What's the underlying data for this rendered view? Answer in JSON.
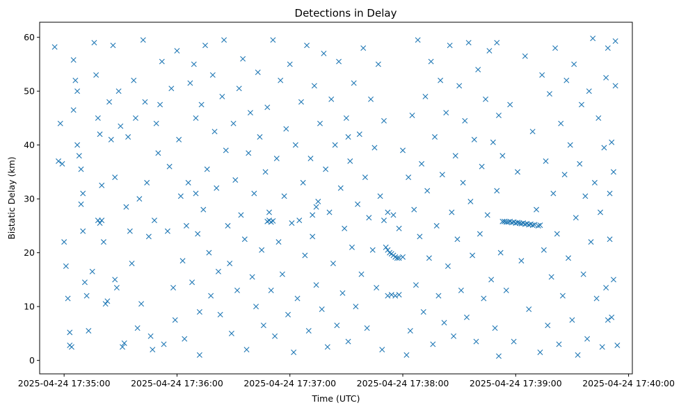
{
  "chart_data": {
    "type": "scatter",
    "title": "Detections in Delay",
    "xlabel": "Time (UTC)",
    "ylabel": "Bistatic Delay (km)",
    "marker": "x",
    "color": "#1f77b4",
    "grid": false,
    "legend": "none",
    "x_axis_type": "time",
    "xlim": [
      "2025-04-24 17:34:47",
      "2025-04-24 17:40:02"
    ],
    "ylim": [
      -2.5,
      62.8
    ],
    "x_ticks": [
      "2025-04-24 17:35:00",
      "2025-04-24 17:36:00",
      "2025-04-24 17:37:00",
      "2025-04-24 17:38:00",
      "2025-04-24 17:39:00",
      "2025-04-24 17:40:00"
    ],
    "y_ticks": [
      "0",
      "10",
      "20",
      "30",
      "40",
      "50",
      "60"
    ],
    "points": [
      [
        "17:34:55",
        58.2
      ],
      [
        "17:34:57",
        37.0
      ],
      [
        "17:34:58",
        44.0
      ],
      [
        "17:34:59",
        36.5
      ],
      [
        "17:35:00",
        22.0
      ],
      [
        "17:35:01",
        17.5
      ],
      [
        "17:35:02",
        11.5
      ],
      [
        "17:35:03",
        5.2
      ],
      [
        "17:35:03",
        2.8
      ],
      [
        "17:35:04",
        2.5
      ],
      [
        "17:35:05",
        55.8
      ],
      [
        "17:35:05",
        46.5
      ],
      [
        "17:35:06",
        52.0
      ],
      [
        "17:35:07",
        50.0
      ],
      [
        "17:35:07",
        40.0
      ],
      [
        "17:35:08",
        38.0
      ],
      [
        "17:35:09",
        35.5
      ],
      [
        "17:35:09",
        29.0
      ],
      [
        "17:35:10",
        31.0
      ],
      [
        "17:35:10",
        24.0
      ],
      [
        "17:35:11",
        14.5
      ],
      [
        "17:35:12",
        12.0
      ],
      [
        "17:35:13",
        5.5
      ],
      [
        "17:35:15",
        16.5
      ],
      [
        "17:35:16",
        59.0
      ],
      [
        "17:35:17",
        53.0
      ],
      [
        "17:35:18",
        45.0
      ],
      [
        "17:35:19",
        42.0
      ],
      [
        "17:35:20",
        32.5
      ],
      [
        "17:35:21",
        22.0
      ],
      [
        "17:35:22",
        10.5
      ],
      [
        "17:35:23",
        11.0
      ],
      [
        "17:35:24",
        48.0
      ],
      [
        "17:35:25",
        41.0
      ],
      [
        "17:35:26",
        58.5
      ],
      [
        "17:35:27",
        34.0
      ],
      [
        "17:35:27",
        15.0
      ],
      [
        "17:35:28",
        13.5
      ],
      [
        "17:35:29",
        50.0
      ],
      [
        "17:35:30",
        43.5
      ],
      [
        "17:35:31",
        2.5
      ],
      [
        "17:35:32",
        3.2
      ],
      [
        "17:35:33",
        28.5
      ],
      [
        "17:35:34",
        41.5
      ],
      [
        "17:35:35",
        24.0
      ],
      [
        "17:35:36",
        18.0
      ],
      [
        "17:35:37",
        52.0
      ],
      [
        "17:35:38",
        45.0
      ],
      [
        "17:35:39",
        6.0
      ],
      [
        "17:35:40",
        30.0
      ],
      [
        "17:35:41",
        10.5
      ],
      [
        "17:35:42",
        59.5
      ],
      [
        "17:35:43",
        48.0
      ],
      [
        "17:35:44",
        33.0
      ],
      [
        "17:35:45",
        23.0
      ],
      [
        "17:35:46",
        4.5
      ],
      [
        "17:35:47",
        2.0
      ],
      [
        "17:35:48",
        26.0
      ],
      [
        "17:35:49",
        44.0
      ],
      [
        "17:35:50",
        38.5
      ],
      [
        "17:35:51",
        47.5
      ],
      [
        "17:35:52",
        55.5
      ],
      [
        "17:35:53",
        3.0
      ],
      [
        "17:35:55",
        24.0
      ],
      [
        "17:35:56",
        36.0
      ],
      [
        "17:35:57",
        50.5
      ],
      [
        "17:35:58",
        13.5
      ],
      [
        "17:35:59",
        7.5
      ],
      [
        "17:36:00",
        57.5
      ],
      [
        "17:36:01",
        41.0
      ],
      [
        "17:36:02",
        30.5
      ],
      [
        "17:36:03",
        18.5
      ],
      [
        "17:36:04",
        4.0
      ],
      [
        "17:36:05",
        25.0
      ],
      [
        "17:36:06",
        33.0
      ],
      [
        "17:36:07",
        51.5
      ],
      [
        "17:36:08",
        14.5
      ],
      [
        "17:36:09",
        55.0
      ],
      [
        "17:36:10",
        45.0
      ],
      [
        "17:36:10",
        31.0
      ],
      [
        "17:36:11",
        23.5
      ],
      [
        "17:36:12",
        9.0
      ],
      [
        "17:36:12",
        1.0
      ],
      [
        "17:36:13",
        47.5
      ],
      [
        "17:36:14",
        28.0
      ],
      [
        "17:36:15",
        58.5
      ],
      [
        "17:36:16",
        35.5
      ],
      [
        "17:36:17",
        20.0
      ],
      [
        "17:36:18",
        12.0
      ],
      [
        "17:36:19",
        53.0
      ],
      [
        "17:36:20",
        42.5
      ],
      [
        "17:36:21",
        32.0
      ],
      [
        "17:36:22",
        16.5
      ],
      [
        "17:36:23",
        8.5
      ],
      [
        "17:36:24",
        49.0
      ],
      [
        "17:36:25",
        59.5
      ],
      [
        "17:36:26",
        39.0
      ],
      [
        "17:36:27",
        25.0
      ],
      [
        "17:36:28",
        18.0
      ],
      [
        "17:36:29",
        5.0
      ],
      [
        "17:36:30",
        44.0
      ],
      [
        "17:36:31",
        33.5
      ],
      [
        "17:36:32",
        13.0
      ],
      [
        "17:36:33",
        50.5
      ],
      [
        "17:36:34",
        27.0
      ],
      [
        "17:36:35",
        56.0
      ],
      [
        "17:36:36",
        22.5
      ],
      [
        "17:36:37",
        2.0
      ],
      [
        "17:36:38",
        38.5
      ],
      [
        "17:36:39",
        46.0
      ],
      [
        "17:36:40",
        15.5
      ],
      [
        "17:36:41",
        31.0
      ],
      [
        "17:36:42",
        10.0
      ],
      [
        "17:36:43",
        53.5
      ],
      [
        "17:36:44",
        41.5
      ],
      [
        "17:36:45",
        20.5
      ],
      [
        "17:36:46",
        6.5
      ],
      [
        "17:36:47",
        35.0
      ],
      [
        "17:36:48",
        47.0
      ],
      [
        "17:36:49",
        27.5
      ],
      [
        "17:36:50",
        13.0
      ],
      [
        "17:36:51",
        59.5
      ],
      [
        "17:36:52",
        4.5
      ],
      [
        "17:36:53",
        37.5
      ],
      [
        "17:36:54",
        22.0
      ],
      [
        "17:36:55",
        52.0
      ],
      [
        "17:36:56",
        16.0
      ],
      [
        "17:36:57",
        30.5
      ],
      [
        "17:36:58",
        43.0
      ],
      [
        "17:36:59",
        8.5
      ],
      [
        "17:37:00",
        55.0
      ],
      [
        "17:37:01",
        25.5
      ],
      [
        "17:37:02",
        1.5
      ],
      [
        "17:37:03",
        40.0
      ],
      [
        "17:37:04",
        11.5
      ],
      [
        "17:37:05",
        26.0
      ],
      [
        "17:37:06",
        48.0
      ],
      [
        "17:37:07",
        33.0
      ],
      [
        "17:37:08",
        19.5
      ],
      [
        "17:37:09",
        58.5
      ],
      [
        "17:37:10",
        5.5
      ],
      [
        "17:37:11",
        37.5
      ],
      [
        "17:37:12",
        23.0
      ],
      [
        "17:37:13",
        51.0
      ],
      [
        "17:37:14",
        14.0
      ],
      [
        "17:37:15",
        29.5
      ],
      [
        "17:37:16",
        44.0
      ],
      [
        "17:37:17",
        9.5
      ],
      [
        "17:37:18",
        57.0
      ],
      [
        "17:37:19",
        35.5
      ],
      [
        "17:37:20",
        2.5
      ],
      [
        "17:37:21",
        27.5
      ],
      [
        "17:37:22",
        48.5
      ],
      [
        "17:37:23",
        18.0
      ],
      [
        "17:37:24",
        40.0
      ],
      [
        "17:37:25",
        6.5
      ],
      [
        "17:37:26",
        55.5
      ],
      [
        "17:37:27",
        32.0
      ],
      [
        "17:37:28",
        12.5
      ],
      [
        "17:37:29",
        24.5
      ],
      [
        "17:37:30",
        45.0
      ],
      [
        "17:37:31",
        3.5
      ],
      [
        "17:37:32",
        37.0
      ],
      [
        "17:37:33",
        21.0
      ],
      [
        "17:37:34",
        51.5
      ],
      [
        "17:37:35",
        10.0
      ],
      [
        "17:37:36",
        29.0
      ],
      [
        "17:37:37",
        42.0
      ],
      [
        "17:37:38",
        16.0
      ],
      [
        "17:37:39",
        58.0
      ],
      [
        "17:37:40",
        34.0
      ],
      [
        "17:37:41",
        6.0
      ],
      [
        "17:37:42",
        26.5
      ],
      [
        "17:37:43",
        48.5
      ],
      [
        "17:37:44",
        20.5
      ],
      [
        "17:37:45",
        39.5
      ],
      [
        "17:37:46",
        13.5
      ],
      [
        "17:37:47",
        55.0
      ],
      [
        "17:37:48",
        30.5
      ],
      [
        "17:37:49",
        2.0
      ],
      [
        "17:37:50",
        44.5
      ],
      [
        "17:37:51",
        21.0
      ],
      [
        "17:37:52",
        20.5
      ],
      [
        "17:37:53",
        20.0
      ],
      [
        "17:37:54",
        19.8
      ],
      [
        "17:37:55",
        19.5
      ],
      [
        "17:37:56",
        19.2
      ],
      [
        "17:37:57",
        19.0
      ],
      [
        "17:37:58",
        19.0
      ],
      [
        "17:38:00",
        19.2
      ],
      [
        "17:37:52",
        12.0
      ],
      [
        "17:37:54",
        12.2
      ],
      [
        "17:37:56",
        12.0
      ],
      [
        "17:37:58",
        12.2
      ],
      [
        "17:37:50",
        26.0
      ],
      [
        "17:37:52",
        27.5
      ],
      [
        "17:37:55",
        27.0
      ],
      [
        "17:37:58",
        24.5
      ],
      [
        "17:38:00",
        39.0
      ],
      [
        "17:38:02",
        1.0
      ],
      [
        "17:38:03",
        34.0
      ],
      [
        "17:38:04",
        5.5
      ],
      [
        "17:38:05",
        45.5
      ],
      [
        "17:38:06",
        28.0
      ],
      [
        "17:38:07",
        14.0
      ],
      [
        "17:38:08",
        59.5
      ],
      [
        "17:38:09",
        23.0
      ],
      [
        "17:38:10",
        36.5
      ],
      [
        "17:38:11",
        9.0
      ],
      [
        "17:38:12",
        49.0
      ],
      [
        "17:38:13",
        31.5
      ],
      [
        "17:38:14",
        19.0
      ],
      [
        "17:38:15",
        55.5
      ],
      [
        "17:38:16",
        3.0
      ],
      [
        "17:38:17",
        41.5
      ],
      [
        "17:38:18",
        25.0
      ],
      [
        "17:38:19",
        12.0
      ],
      [
        "17:38:20",
        52.0
      ],
      [
        "17:38:21",
        34.5
      ],
      [
        "17:38:22",
        7.0
      ],
      [
        "17:38:23",
        46.0
      ],
      [
        "17:38:24",
        17.5
      ],
      [
        "17:38:25",
        58.5
      ],
      [
        "17:38:26",
        27.5
      ],
      [
        "17:38:27",
        4.5
      ],
      [
        "17:38:28",
        38.0
      ],
      [
        "17:38:29",
        22.5
      ],
      [
        "17:38:30",
        51.0
      ],
      [
        "17:38:31",
        13.0
      ],
      [
        "17:38:32",
        33.0
      ],
      [
        "17:38:33",
        44.5
      ],
      [
        "17:38:34",
        8.0
      ],
      [
        "17:38:35",
        59.0
      ],
      [
        "17:38:36",
        29.5
      ],
      [
        "17:38:37",
        19.5
      ],
      [
        "17:38:38",
        41.0
      ],
      [
        "17:38:39",
        3.5
      ],
      [
        "17:38:40",
        54.0
      ],
      [
        "17:38:41",
        23.5
      ],
      [
        "17:38:42",
        36.0
      ],
      [
        "17:38:43",
        11.5
      ],
      [
        "17:38:44",
        48.5
      ],
      [
        "17:38:45",
        27.0
      ],
      [
        "17:38:46",
        57.5
      ],
      [
        "17:38:47",
        15.0
      ],
      [
        "17:38:48",
        40.5
      ],
      [
        "17:38:49",
        6.0
      ],
      [
        "17:38:50",
        31.5
      ],
      [
        "17:38:51",
        45.5
      ],
      [
        "17:38:52",
        20.0
      ],
      [
        "17:38:53",
        25.8
      ],
      [
        "17:38:54",
        25.8
      ],
      [
        "17:38:55",
        25.7
      ],
      [
        "17:38:56",
        25.7
      ],
      [
        "17:38:57",
        25.8
      ],
      [
        "17:38:58",
        25.6
      ],
      [
        "17:38:59",
        25.7
      ],
      [
        "17:39:00",
        25.5
      ],
      [
        "17:39:01",
        25.6
      ],
      [
        "17:39:02",
        25.5
      ],
      [
        "17:39:03",
        25.4
      ],
      [
        "17:39:04",
        25.5
      ],
      [
        "17:39:05",
        25.3
      ],
      [
        "17:39:06",
        25.4
      ],
      [
        "17:39:07",
        25.2
      ],
      [
        "17:39:08",
        25.3
      ],
      [
        "17:39:09",
        25.1
      ],
      [
        "17:39:10",
        25.2
      ],
      [
        "17:39:12",
        25.0
      ],
      [
        "17:39:13",
        25.1
      ],
      [
        "17:38:50",
        59.0
      ],
      [
        "17:38:51",
        0.8
      ],
      [
        "17:38:53",
        38.0
      ],
      [
        "17:38:55",
        13.0
      ],
      [
        "17:38:57",
        47.5
      ],
      [
        "17:38:59",
        3.5
      ],
      [
        "17:39:01",
        35.0
      ],
      [
        "17:39:03",
        18.5
      ],
      [
        "17:39:05",
        56.5
      ],
      [
        "17:39:07",
        9.5
      ],
      [
        "17:39:09",
        42.5
      ],
      [
        "17:39:11",
        28.0
      ],
      [
        "17:39:13",
        1.5
      ],
      [
        "17:39:14",
        53.0
      ],
      [
        "17:39:15",
        20.5
      ],
      [
        "17:39:16",
        37.0
      ],
      [
        "17:39:17",
        6.5
      ],
      [
        "17:39:18",
        49.5
      ],
      [
        "17:39:19",
        15.5
      ],
      [
        "17:39:20",
        31.0
      ],
      [
        "17:39:21",
        58.0
      ],
      [
        "17:39:22",
        23.5
      ],
      [
        "17:39:23",
        3.0
      ],
      [
        "17:39:24",
        44.0
      ],
      [
        "17:39:25",
        12.0
      ],
      [
        "17:39:26",
        34.5
      ],
      [
        "17:39:27",
        52.0
      ],
      [
        "17:39:28",
        19.0
      ],
      [
        "17:39:29",
        40.0
      ],
      [
        "17:39:30",
        7.5
      ],
      [
        "17:39:31",
        55.0
      ],
      [
        "17:39:32",
        26.5
      ],
      [
        "17:39:33",
        1.0
      ],
      [
        "17:39:34",
        36.5
      ],
      [
        "17:39:35",
        47.5
      ],
      [
        "17:39:36",
        16.0
      ],
      [
        "17:39:37",
        30.5
      ],
      [
        "17:39:38",
        4.0
      ],
      [
        "17:39:39",
        50.0
      ],
      [
        "17:39:40",
        22.0
      ],
      [
        "17:39:41",
        59.8
      ],
      [
        "17:39:42",
        33.0
      ],
      [
        "17:39:43",
        11.5
      ],
      [
        "17:39:44",
        45.0
      ],
      [
        "17:39:45",
        27.5
      ],
      [
        "17:39:46",
        2.5
      ],
      [
        "17:39:47",
        39.5
      ],
      [
        "17:39:48",
        13.5
      ],
      [
        "17:39:49",
        58.0
      ],
      [
        "17:39:50",
        22.5
      ],
      [
        "17:39:51",
        8.0
      ],
      [
        "17:39:52",
        15.0
      ],
      [
        "17:39:52",
        35.0
      ],
      [
        "17:39:53",
        51.0
      ],
      [
        "17:39:53",
        59.3
      ],
      [
        "17:39:54",
        2.8
      ],
      [
        "17:39:51",
        40.5
      ],
      [
        "17:39:50",
        31.0
      ],
      [
        "17:39:49",
        7.5
      ],
      [
        "17:39:48",
        52.5
      ],
      [
        "17:35:18",
        26.0
      ],
      [
        "17:35:19",
        25.5
      ],
      [
        "17:35:20",
        26.0
      ],
      [
        "17:36:48",
        25.8
      ],
      [
        "17:36:49",
        26.0
      ],
      [
        "17:36:50",
        25.7
      ],
      [
        "17:36:51",
        25.9
      ],
      [
        "17:37:12",
        27.0
      ],
      [
        "17:37:14",
        28.5
      ],
      [
        "17:37:31",
        41.5
      ]
    ]
  }
}
